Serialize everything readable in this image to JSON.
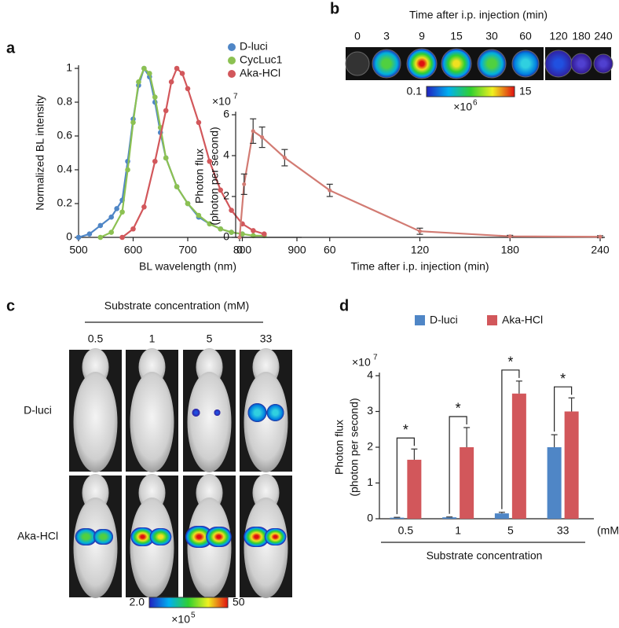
{
  "chart_data": [
    {
      "type": "line",
      "xlabel": "BL wavelength (nm)",
      "ylabel": "Normalized BL intensity",
      "xlim": [
        500,
        900
      ],
      "xticks": [
        500,
        600,
        700,
        800,
        900
      ],
      "ylim": [
        0,
        1
      ],
      "yticks": [
        0,
        0.2,
        0.4,
        0.6,
        0.8,
        1
      ],
      "legend": "top-right",
      "series": [
        {
          "name": "D-luci",
          "color": "#4f86c6",
          "x": [
            500,
            520,
            540,
            560,
            570,
            580,
            590,
            600,
            610,
            620,
            630,
            640,
            650,
            660,
            680,
            700,
            720,
            740,
            760,
            780,
            800
          ],
          "values": [
            0,
            0.02,
            0.07,
            0.12,
            0.17,
            0.22,
            0.45,
            0.7,
            0.9,
            1,
            0.95,
            0.8,
            0.62,
            0.47,
            0.3,
            0.2,
            0.12,
            0.08,
            0.05,
            0.03,
            0.02
          ]
        },
        {
          "name": "CycLuc1",
          "color": "#8cc152",
          "x": [
            540,
            560,
            580,
            590,
            600,
            610,
            620,
            630,
            640,
            650,
            660,
            680,
            700,
            720,
            740,
            760,
            780,
            800,
            820,
            840
          ],
          "values": [
            0,
            0.03,
            0.15,
            0.4,
            0.68,
            0.92,
            1,
            0.97,
            0.83,
            0.65,
            0.47,
            0.3,
            0.2,
            0.13,
            0.08,
            0.05,
            0.03,
            0.02,
            0.01,
            0.01
          ]
        },
        {
          "name": "Aka-HCl",
          "color": "#d2575b",
          "x": [
            580,
            600,
            620,
            640,
            660,
            670,
            680,
            690,
            700,
            720,
            740,
            760,
            780,
            800,
            820,
            840
          ],
          "values": [
            0,
            0.05,
            0.18,
            0.45,
            0.75,
            0.92,
            1,
            0.97,
            0.88,
            0.68,
            0.45,
            0.28,
            0.16,
            0.08,
            0.04,
            0.02
          ]
        }
      ]
    },
    {
      "type": "line",
      "xlabel": "Time after i.p. injection (min)",
      "ylabel": [
        "Photon flux",
        "(photon per second)"
      ],
      "y_multiplier": {
        "base": "×10",
        "exponent": "7"
      },
      "xlim": [
        0,
        240
      ],
      "xticks": [
        0,
        60,
        120,
        180,
        240
      ],
      "ylim": [
        0,
        6
      ],
      "yticks": [
        0,
        2,
        4,
        6
      ],
      "series": [
        {
          "name": "Aka-HCl",
          "color": "#d27b73",
          "x": [
            0,
            3,
            9,
            15,
            30,
            60,
            120,
            180,
            240
          ],
          "values": [
            0,
            2.6,
            5.2,
            4.9,
            3.9,
            2.3,
            0.3,
            0.05,
            0.03
          ],
          "errors": [
            0,
            0.5,
            0.6,
            0.5,
            0.4,
            0.3,
            0.15,
            0.05,
            0.05
          ]
        }
      ]
    },
    {
      "type": "bar",
      "xlabel": "Substrate concentration",
      "x_unit": "(mM)",
      "ylabel": [
        "Photon flux",
        "(photon per second)"
      ],
      "y_multiplier": {
        "base": "×10",
        "exponent": "7"
      },
      "categories": [
        "0.5",
        "1",
        "5",
        "33"
      ],
      "ylim": [
        0,
        4
      ],
      "yticks": [
        0,
        1,
        2,
        3,
        4
      ],
      "legend": "top",
      "annotations": [
        "*",
        "*",
        "*",
        "*"
      ],
      "series": [
        {
          "name": "D-luci",
          "color": "#4f86c6",
          "values": [
            0.03,
            0.04,
            0.15,
            2.0
          ],
          "errors": [
            0.01,
            0.01,
            0.03,
            0.35
          ]
        },
        {
          "name": "Aka-HCl",
          "color": "#d2575b",
          "values": [
            1.65,
            2.0,
            3.5,
            3.0
          ],
          "errors": [
            0.3,
            0.55,
            0.35,
            0.38
          ]
        }
      ]
    }
  ],
  "figure": {
    "panel_labels": [
      "a",
      "b",
      "c",
      "d"
    ],
    "b_images": {
      "title": "Time after i.p. injection (min)",
      "times": [
        "0",
        "3",
        "9",
        "15",
        "30",
        "60",
        "120",
        "180",
        "240"
      ],
      "colorbar": {
        "min": "0.1",
        "max": "15",
        "base": "×10",
        "exponent": "6"
      }
    },
    "c_images": {
      "title": "Substrate concentration (mM)",
      "concentrations": [
        "0.5",
        "1",
        "5",
        "33"
      ],
      "rows": [
        "D-luci",
        "Aka-HCl"
      ],
      "colorbar": {
        "min": "2.0",
        "max": "50",
        "base": "×10",
        "exponent": "5"
      }
    }
  }
}
